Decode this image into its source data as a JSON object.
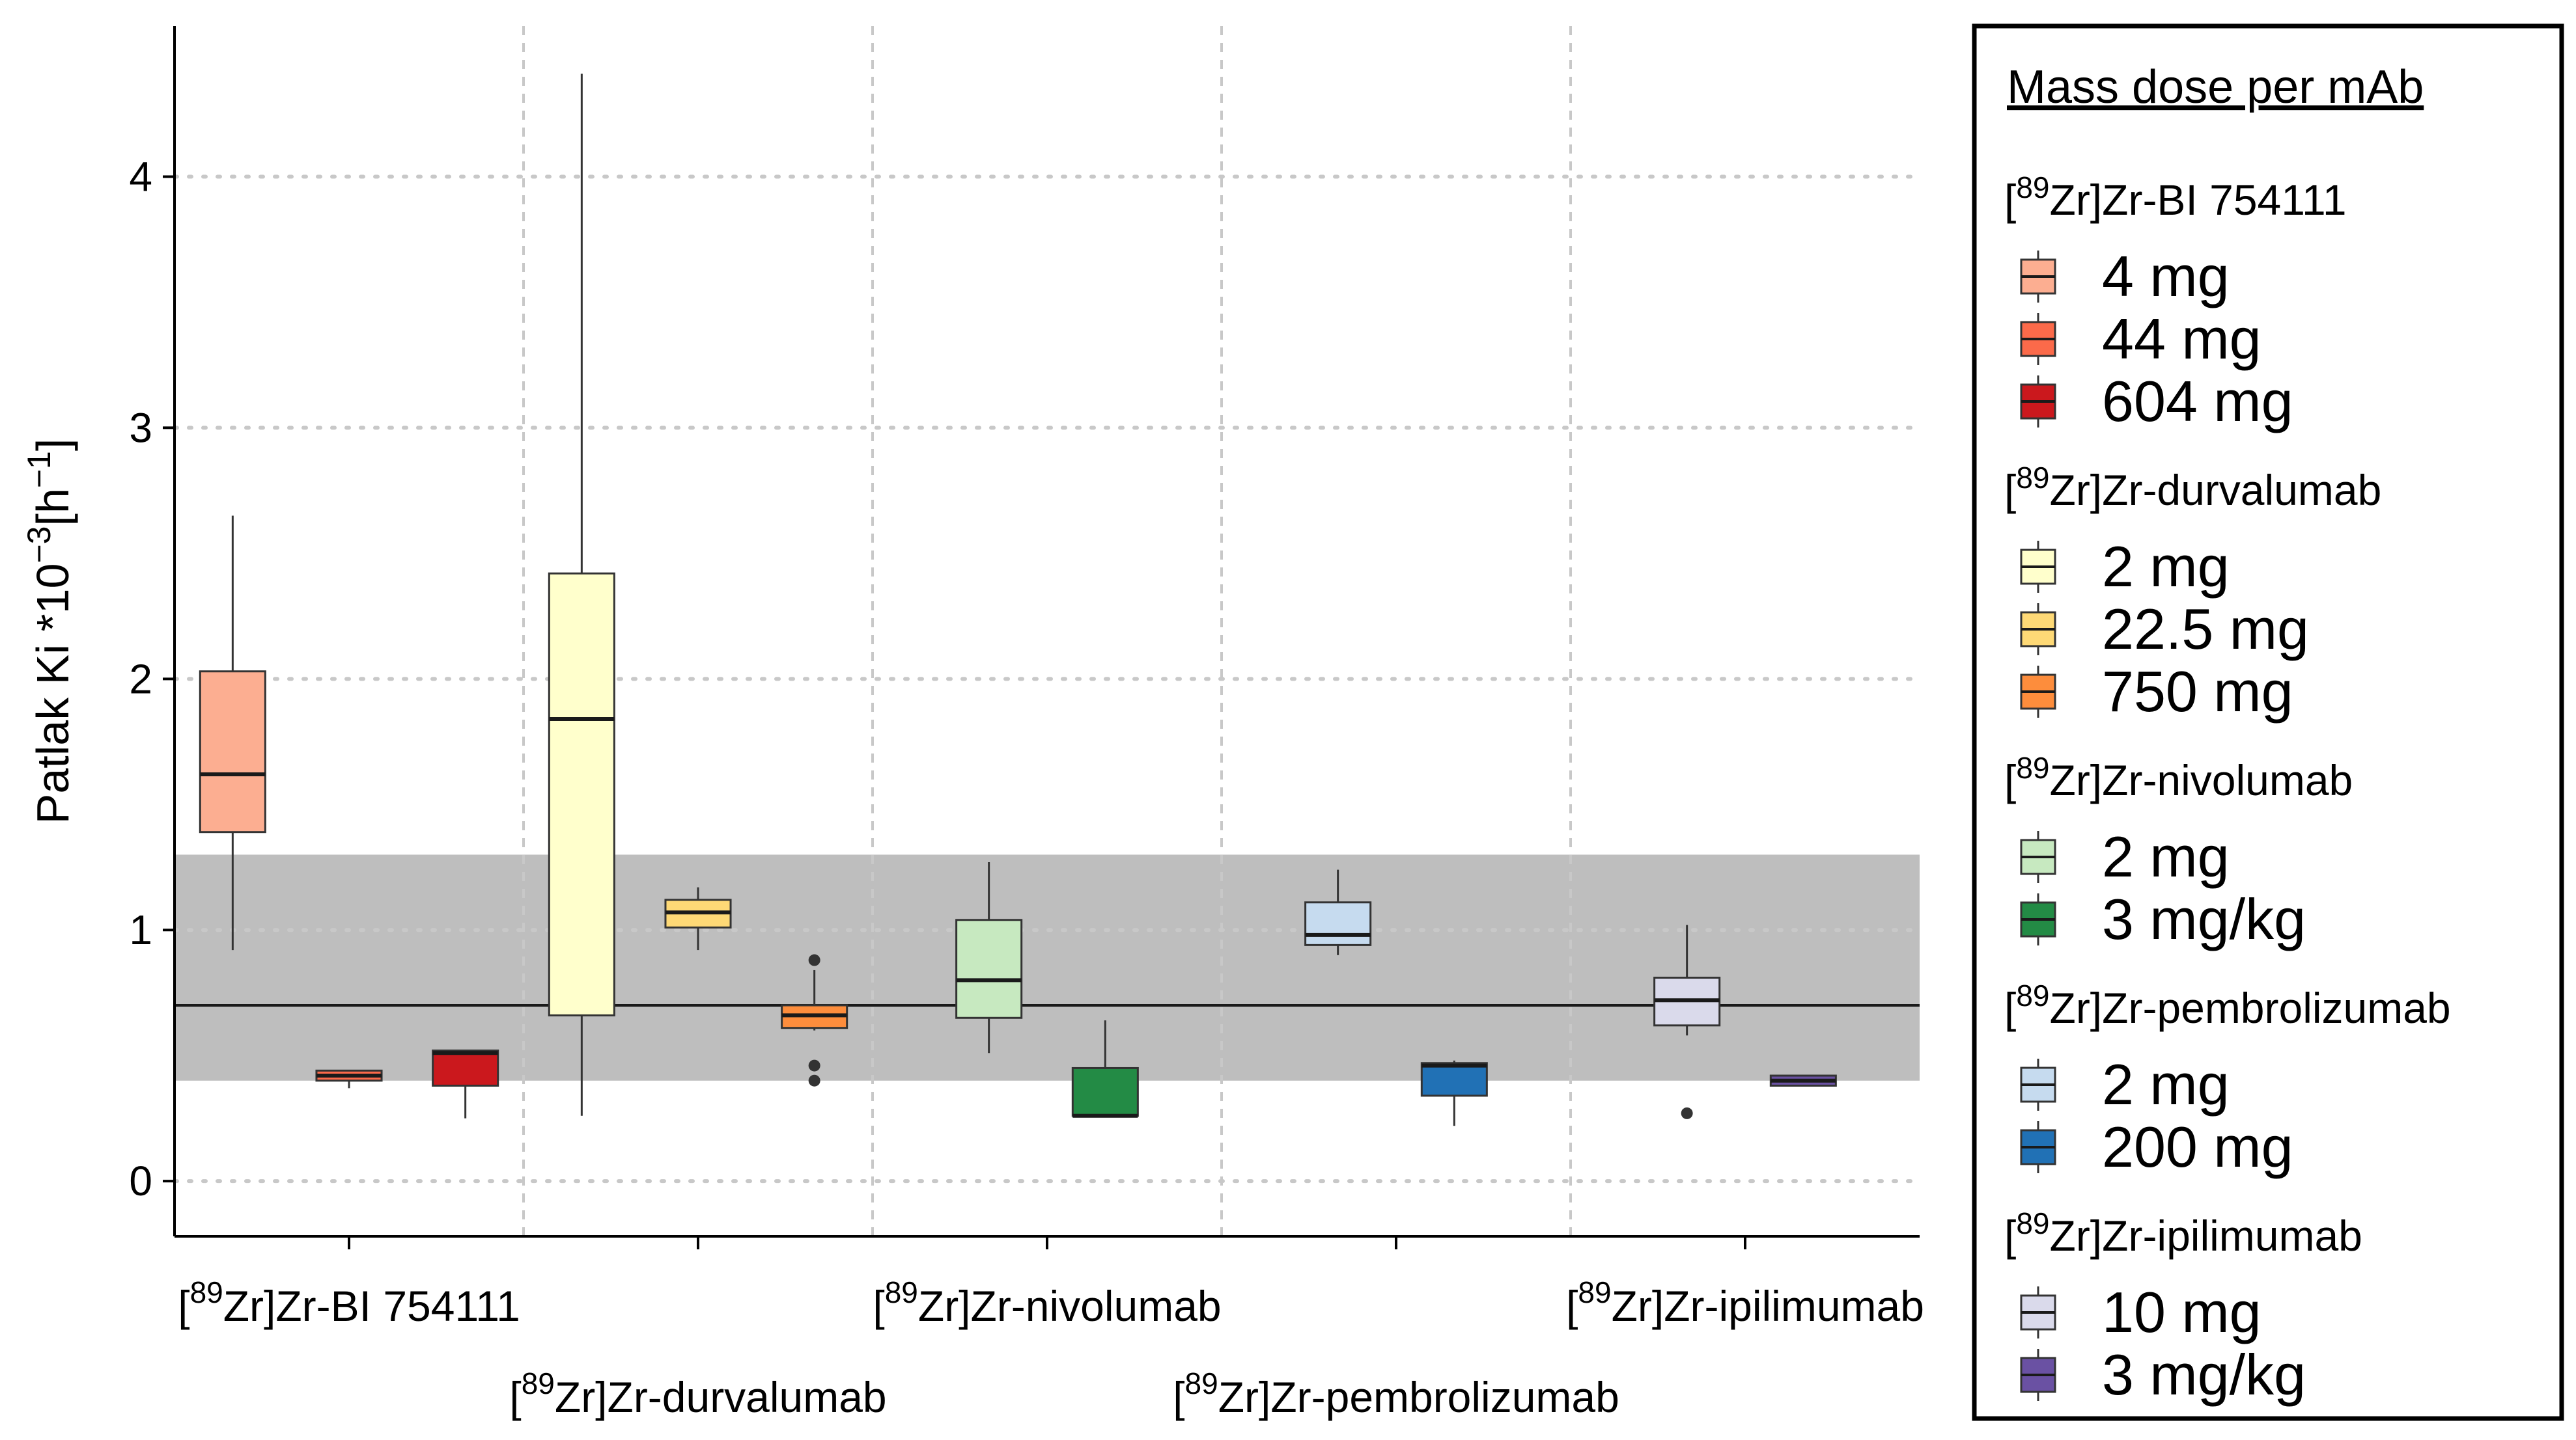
{
  "chart_data": {
    "type": "box",
    "ylabel": "Patlak Ki *10",
    "ylabel_exp": "−3",
    "ylabel_unit_open": "[h",
    "ylabel_unit_exp": "−1",
    "ylabel_unit_close": "]",
    "ylim": [
      -0.22,
      4.6
    ],
    "yticks": [
      0,
      1,
      2,
      3,
      4
    ],
    "ytick_labels": [
      "0",
      "1",
      "2",
      "3",
      "4"
    ],
    "reference": {
      "line": 0.7,
      "band": [
        0.4,
        1.3
      ]
    },
    "groups": [
      {
        "name": "[89Zr]Zr-BI 754111",
        "pre": "[",
        "sup": "89",
        "post": "Zr]Zr-BI 754111",
        "row": 1
      },
      {
        "name": "[89Zr]Zr-durvalumab",
        "pre": "[",
        "sup": "89",
        "post": "Zr]Zr-durvalumab",
        "row": 2
      },
      {
        "name": "[89Zr]Zr-nivolumab",
        "pre": "[",
        "sup": "89",
        "post": "Zr]Zr-nivolumab",
        "row": 1
      },
      {
        "name": "[89Zr]Zr-pembrolizumab",
        "pre": "[",
        "sup": "89",
        "post": "Zr]Zr-pembrolizumab",
        "row": 2
      },
      {
        "name": "[89Zr]Zr-ipilimumab",
        "pre": "[",
        "sup": "89",
        "post": "Zr]Zr-ipilimumab",
        "row": 1
      }
    ],
    "boxes": [
      {
        "label": "4 mg",
        "group": 0,
        "color": "#fcae91",
        "min": 0.92,
        "q1": 1.39,
        "median": 1.62,
        "q3": 2.03,
        "max": 2.65,
        "outliers": []
      },
      {
        "label": "44 mg",
        "group": 0,
        "color": "#fb6a4a",
        "min": 0.37,
        "q1": 0.4,
        "median": 0.42,
        "q3": 0.44,
        "max": 0.44,
        "outliers": []
      },
      {
        "label": "604 mg",
        "group": 0,
        "color": "#cb181d",
        "min": 0.25,
        "q1": 0.38,
        "median": 0.51,
        "q3": 0.52,
        "max": 0.52,
        "outliers": []
      },
      {
        "label": "2 mg",
        "group": 1,
        "color": "#ffffcc",
        "min": 0.26,
        "q1": 0.66,
        "median": 1.84,
        "q3": 2.42,
        "max": 4.41,
        "outliers": []
      },
      {
        "label": "22.5 mg",
        "group": 1,
        "color": "#fed976",
        "min": 0.92,
        "q1": 1.01,
        "median": 1.07,
        "q3": 1.12,
        "max": 1.17,
        "outliers": []
      },
      {
        "label": "750 mg",
        "group": 1,
        "color": "#fd8d3c",
        "min": 0.6,
        "q1": 0.61,
        "median": 0.66,
        "q3": 0.7,
        "max": 0.84,
        "outliers": [
          0.88,
          0.46,
          0.4
        ]
      },
      {
        "label": "2 mg",
        "group": 2,
        "color": "#c7e9c0",
        "min": 0.51,
        "q1": 0.65,
        "median": 0.8,
        "q3": 1.04,
        "max": 1.27,
        "outliers": []
      },
      {
        "label": "3 mg/kg",
        "group": 2,
        "color": "#238b45",
        "min": 0.26,
        "q1": 0.26,
        "median": 0.26,
        "q3": 0.45,
        "max": 0.64,
        "outliers": []
      },
      {
        "label": "2 mg",
        "group": 3,
        "color": "#c6dbef",
        "min": 0.9,
        "q1": 0.94,
        "median": 0.98,
        "q3": 1.11,
        "max": 1.24,
        "outliers": []
      },
      {
        "label": "200 mg",
        "group": 3,
        "color": "#2171b5",
        "min": 0.22,
        "q1": 0.34,
        "median": 0.46,
        "q3": 0.47,
        "max": 0.48,
        "outliers": []
      },
      {
        "label": "10 mg",
        "group": 4,
        "color": "#dadaeb",
        "min": 0.58,
        "q1": 0.62,
        "median": 0.72,
        "q3": 0.81,
        "max": 1.02,
        "outliers": [
          0.27
        ]
      },
      {
        "label": "3 mg/kg",
        "group": 4,
        "color": "#6a51a3",
        "min": 0.38,
        "q1": 0.38,
        "median": 0.4,
        "q3": 0.42,
        "max": 0.42,
        "outliers": []
      }
    ],
    "legend": {
      "title": "Mass dose per mAb",
      "position": "right",
      "sections": [
        {
          "pre": "[",
          "sup": "89",
          "post": "Zr]Zr-BI 754111",
          "items": [
            {
              "label": "4 mg",
              "color": "#fcae91"
            },
            {
              "label": "44 mg",
              "color": "#fb6a4a"
            },
            {
              "label": "604 mg",
              "color": "#cb181d"
            }
          ]
        },
        {
          "pre": "[",
          "sup": "89",
          "post": "Zr]Zr-durvalumab",
          "items": [
            {
              "label": "2 mg",
              "color": "#ffffcc"
            },
            {
              "label": "22.5 mg",
              "color": "#fed976"
            },
            {
              "label": "750 mg",
              "color": "#fd8d3c"
            }
          ]
        },
        {
          "pre": "[",
          "sup": "89",
          "post": "Zr]Zr-nivolumab",
          "items": [
            {
              "label": "2 mg",
              "color": "#c7e9c0"
            },
            {
              "label": "3 mg/kg",
              "color": "#238b45"
            }
          ]
        },
        {
          "pre": "[",
          "sup": "89",
          "post": "Zr]Zr-pembrolizumab",
          "items": [
            {
              "label": "2 mg",
              "color": "#c6dbef"
            },
            {
              "label": "200 mg",
              "color": "#2171b5"
            }
          ]
        },
        {
          "pre": "[",
          "sup": "89",
          "post": "Zr]Zr-ipilimumab",
          "items": [
            {
              "label": "10 mg",
              "color": "#dadaeb"
            },
            {
              "label": "3 mg/kg",
              "color": "#6a51a3"
            }
          ]
        }
      ]
    }
  }
}
